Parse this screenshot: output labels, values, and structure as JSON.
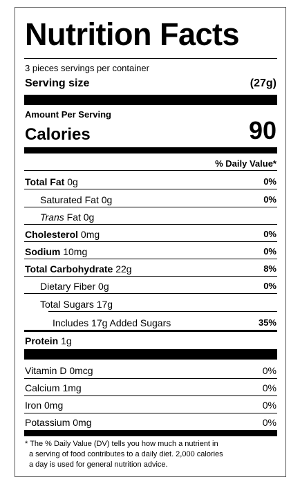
{
  "header": {
    "title": "Nutrition Facts",
    "servings": "3 pieces servings per container",
    "serving_size_label": "Serving size",
    "serving_size": "(27g)"
  },
  "calories": {
    "amount_per_serving": "Amount Per Serving",
    "label": "Calories",
    "value": "90"
  },
  "daily_value_header": "% Daily Value*",
  "nutrients": [
    {
      "name": "Total Fat",
      "amount": "0g",
      "dv": "0%"
    },
    {
      "name": "Saturated Fat",
      "amount": "0g",
      "dv": "0%"
    },
    {
      "name": "Trans",
      "amount": "Fat 0g"
    },
    {
      "name": "Cholesterol",
      "amount": "0mg",
      "dv": "0%"
    },
    {
      "name": "Sodium",
      "amount": "10mg",
      "dv": "0%"
    },
    {
      "name": "Total Carbohydrate",
      "amount": "22g",
      "dv": "8%"
    },
    {
      "name": "Dietary Fiber",
      "amount": "0g",
      "dv": "0%"
    },
    {
      "name": "Total Sugars",
      "amount": "17g"
    },
    {
      "name": "Includes 17g Added Sugars",
      "dv": "35%"
    },
    {
      "name": "Protein",
      "amount": "1g"
    }
  ],
  "vitamins": [
    {
      "name": "Vitamin D 0mcg",
      "dv": "0%"
    },
    {
      "name": "Calcium 1mg",
      "dv": "0%"
    },
    {
      "name": "Iron 0mg",
      "dv": "0%"
    },
    {
      "name": "Potassium 0mg",
      "dv": "0%"
    }
  ],
  "footnote": [
    "* The % Daily Value (DV) tells you how much a nutrient in",
    "a serving of food contributes to a daily diet. 2,000 calories",
    "a day is used for general nutrition advice."
  ]
}
